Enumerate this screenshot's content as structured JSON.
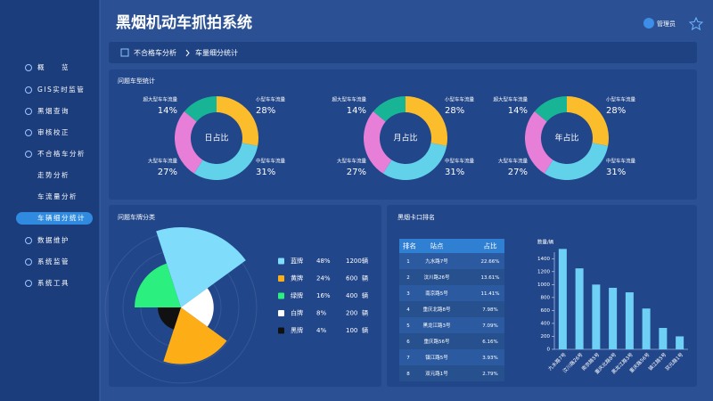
{
  "header": {
    "title": "黑烟机动车抓拍系统",
    "user": "管理员"
  },
  "sidebar": {
    "items": [
      "概　　览",
      "GIS实时监管",
      "黑烟查询",
      "审核校正",
      "不合格车分析",
      "走势分析",
      "车流量分析",
      "车辆细分统计",
      "数据维护",
      "系统监管",
      "系统工具"
    ],
    "active": 7
  },
  "breadcrumb": [
    "不合格车分析",
    "车量细分统计"
  ],
  "vehicle_types": {
    "title": "问题车型统计",
    "categories": [
      "小型车车流量",
      "中型车车流量",
      "大型车车流量",
      "超大型车车流量"
    ],
    "colors": [
      "#fbbd2b",
      "#62d2ea",
      "#e77fd9",
      "#17b596"
    ],
    "charts": [
      {
        "center": "日占比",
        "values": [
          28,
          31,
          27,
          14
        ],
        "value_labels": [
          "28%",
          "31%",
          "27%",
          "14%"
        ]
      },
      {
        "center": "月占比",
        "values": [
          28,
          31,
          27,
          14
        ],
        "value_labels": [
          "28%",
          "31%",
          "27%",
          "14%"
        ]
      },
      {
        "center": "年占比",
        "values": [
          28,
          31,
          27,
          14
        ],
        "value_labels": [
          "28%",
          "31%",
          "27%",
          "14%"
        ]
      }
    ]
  },
  "plates": {
    "title": "问题车牌分类",
    "categories": [
      "蓝牌",
      "黄牌",
      "绿牌",
      "白牌",
      "黑牌"
    ],
    "share_labels": [
      "48%",
      "24%",
      "16%",
      "8%",
      "4%"
    ],
    "values": [
      1200,
      600,
      400,
      200,
      100
    ],
    "unit": "辆",
    "colors": [
      "#7fdcfb",
      "#fdae17",
      "#2bef7e",
      "#ffffff",
      "#111111"
    ]
  },
  "ranking_table": {
    "title": "黑烟卡口排名",
    "columns": [
      "排名",
      "站点",
      "占比"
    ],
    "rows": [
      [
        "1",
        "九水路7号",
        "22.66%"
      ],
      [
        "2",
        "汶川路26号",
        "13.61%"
      ],
      [
        "3",
        "南京路5号",
        "11.41%"
      ],
      [
        "4",
        "重庆北路8号",
        "7.98%"
      ],
      [
        "5",
        "黑龙江路3号",
        "7.09%"
      ],
      [
        "6",
        "重庆路56号",
        "6.16%"
      ],
      [
        "7",
        "镇江路5号",
        "3.93%"
      ],
      [
        "8",
        "双元路1号",
        "2.79%"
      ]
    ]
  },
  "bar_chart": {
    "type": "bar",
    "y_label": "数量/辆",
    "categories": [
      "九水路7号",
      "汶川路26号",
      "南京路5号",
      "重庆北路8号",
      "黑龙江路3号",
      "重庆路56号",
      "镇江路5号",
      "双元路1号"
    ],
    "values": [
      1550,
      1250,
      1000,
      950,
      880,
      630,
      330,
      200
    ],
    "color": "#6fd0f5",
    "ylim": [
      0,
      1500
    ],
    "yticks": [
      0,
      200,
      400,
      600,
      800,
      1000,
      1200,
      1400
    ]
  }
}
